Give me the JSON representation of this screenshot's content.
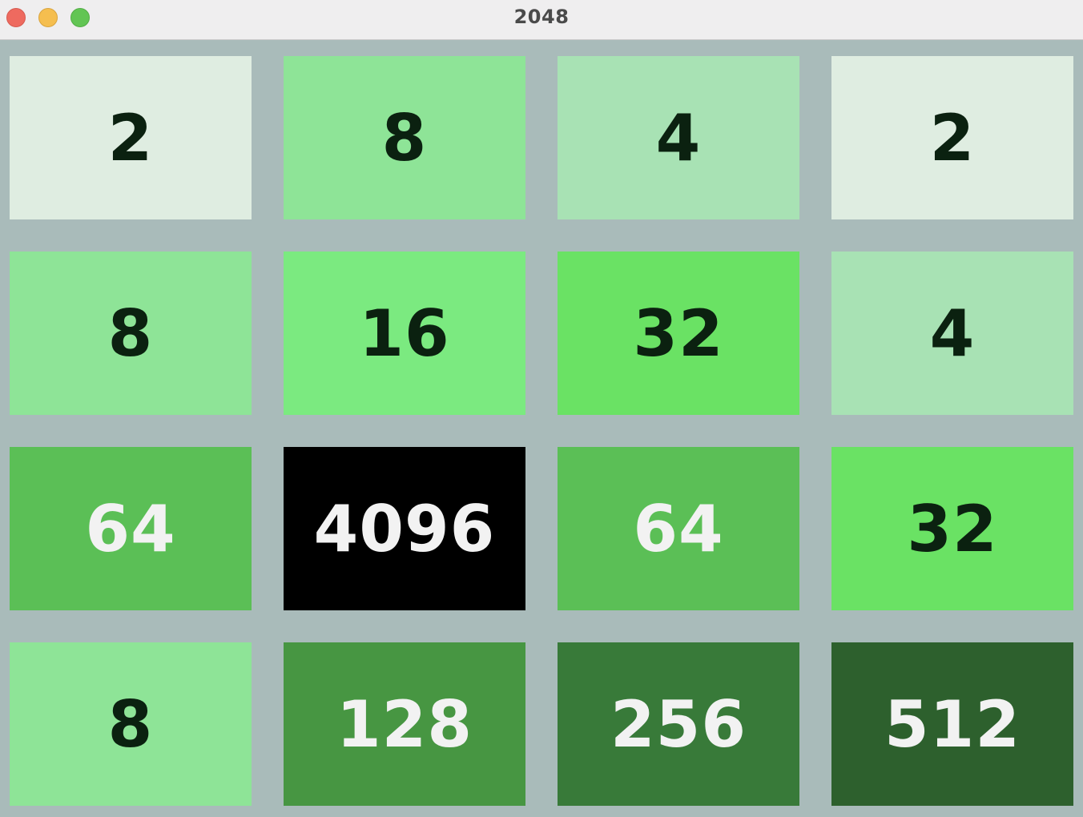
{
  "window": {
    "title": "2048"
  },
  "board": {
    "rows": [
      [
        "2",
        "8",
        "4",
        "2"
      ],
      [
        "8",
        "16",
        "32",
        "4"
      ],
      [
        "64",
        "4096",
        "64",
        "32"
      ],
      [
        "8",
        "128",
        "256",
        "512"
      ]
    ]
  },
  "colors": {
    "tile_2": "#dfede1",
    "tile_4": "#a8e2b4",
    "tile_8": "#8ee497",
    "tile_16": "#7bea80",
    "tile_32": "#6ae264",
    "tile_64": "#5bbf56",
    "tile_128": "#479642",
    "tile_256": "#387a39",
    "tile_512": "#2d602d",
    "tile_4096": "#000000",
    "board_background": "#a9bbba",
    "dark_text": "#0b2110",
    "light_text": "#f2f2f2"
  }
}
